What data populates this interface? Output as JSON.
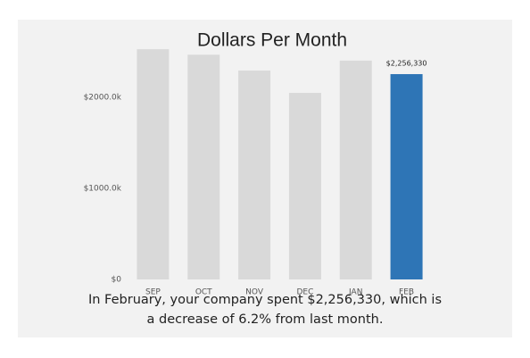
{
  "chart_data": {
    "type": "bar",
    "title": "Dollars Per Month",
    "categories": [
      "SEP",
      "OCT",
      "NOV",
      "DEC",
      "JAN",
      "FEB"
    ],
    "values": [
      2530000,
      2470000,
      2295000,
      2050000,
      2405000,
      2256330
    ],
    "value_labels": [
      null,
      null,
      null,
      null,
      null,
      "$2,256,330"
    ],
    "colors": [
      "#d9d9d9",
      "#d9d9d9",
      "#d9d9d9",
      "#d9d9d9",
      "#d9d9d9",
      "#2e75b6"
    ],
    "ylim": [
      0,
      2600000
    ],
    "yticks": [
      {
        "value": 0,
        "label": "$0"
      },
      {
        "value": 1000000,
        "label": "$1000.0k"
      },
      {
        "value": 2000000,
        "label": "$2000.0k"
      }
    ],
    "grid": false,
    "caption": [
      "In February, your company spent $2,256,330, which is",
      "a decrease of 6.2% from last month."
    ]
  }
}
